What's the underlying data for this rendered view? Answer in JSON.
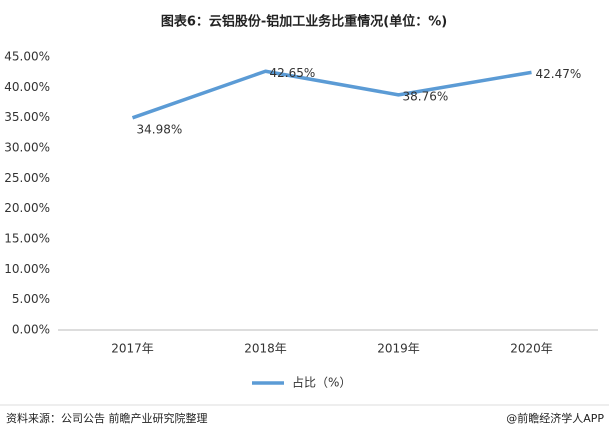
{
  "chart_data": {
    "type": "line",
    "title": "图表6：云铝股份-铝加工业务比重情况(单位：%)",
    "categories": [
      "2017年",
      "2018年",
      "2019年",
      "2020年"
    ],
    "series": [
      {
        "name": "占比（%）",
        "color": "#5b9bd5",
        "values": [
          34.98,
          42.65,
          38.76,
          42.47
        ],
        "value_labels": [
          "34.98%",
          "42.65%",
          "38.76%",
          "42.47%"
        ]
      }
    ],
    "ylim": [
      0,
      45
    ],
    "yticks": [
      {
        "value": 0,
        "label": "0.00%"
      },
      {
        "value": 5,
        "label": "5.00%"
      },
      {
        "value": 10,
        "label": "10.00%"
      },
      {
        "value": 15,
        "label": "15.00%"
      },
      {
        "value": 20,
        "label": "20.00%"
      },
      {
        "value": 25,
        "label": "25.00%"
      },
      {
        "value": 30,
        "label": "30.00%"
      },
      {
        "value": 35,
        "label": "35.00%"
      },
      {
        "value": 40,
        "label": "40.00%"
      },
      {
        "value": 45,
        "label": "45.00%"
      }
    ],
    "grid": false,
    "legend": "bottom",
    "source": "资料来源：公司公告 前瞻产业研究院整理",
    "credit": "@前瞻经济学人APP"
  }
}
